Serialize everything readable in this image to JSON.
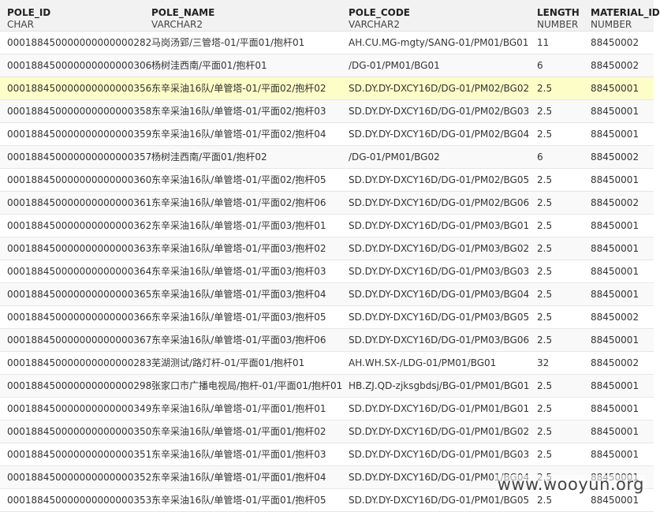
{
  "columns": [
    {
      "name": "POLE_ID",
      "type": "CHAR"
    },
    {
      "name": "POLE_NAME",
      "type": "VARCHAR2"
    },
    {
      "name": "POLE_CODE",
      "type": "VARCHAR2"
    },
    {
      "name": "LENGTH",
      "type": "NUMBER"
    },
    {
      "name": "MATERIAL_ID",
      "type": "NUMBER"
    }
  ],
  "highlighted_row": 2,
  "rows": [
    [
      "000188450000000000000282",
      "马岗汤郢/三管塔-01/平面01/抱杆01",
      "AH.CU.MG-mgty/SANG-01/PM01/BG01",
      "11",
      "88450002"
    ],
    [
      "000188450000000000000306",
      "杨树洼西南/平面01/抱杆01",
      "/DG-01/PM01/BG01",
      "6",
      "88450002"
    ],
    [
      "000188450000000000000356",
      "东辛采油16队/单管塔-01/平面02/抱杆02",
      "SD.DY.DY-DXCY16D/DG-01/PM02/BG02",
      "2.5",
      "88450001"
    ],
    [
      "000188450000000000000358",
      "东辛采油16队/单管塔-01/平面02/抱杆03",
      "SD.DY.DY-DXCY16D/DG-01/PM02/BG03",
      "2.5",
      "88450001"
    ],
    [
      "000188450000000000000359",
      "东辛采油16队/单管塔-01/平面02/抱杆04",
      "SD.DY.DY-DXCY16D/DG-01/PM02/BG04",
      "2.5",
      "88450001"
    ],
    [
      "000188450000000000000357",
      "杨树洼西南/平面01/抱杆02",
      "/DG-01/PM01/BG02",
      "6",
      "88450002"
    ],
    [
      "000188450000000000000360",
      "东辛采油16队/单管塔-01/平面02/抱杆05",
      "SD.DY.DY-DXCY16D/DG-01/PM02/BG05",
      "2.5",
      "88450001"
    ],
    [
      "000188450000000000000361",
      "东辛采油16队/单管塔-01/平面02/抱杆06",
      "SD.DY.DY-DXCY16D/DG-01/PM02/BG06",
      "2.5",
      "88450002"
    ],
    [
      "000188450000000000000362",
      "东辛采油16队/单管塔-01/平面03/抱杆01",
      "SD.DY.DY-DXCY16D/DG-01/PM03/BG01",
      "2.5",
      "88450001"
    ],
    [
      "000188450000000000000363",
      "东辛采油16队/单管塔-01/平面03/抱杆02",
      "SD.DY.DY-DXCY16D/DG-01/PM03/BG02",
      "2.5",
      "88450001"
    ],
    [
      "000188450000000000000364",
      "东辛采油16队/单管塔-01/平面03/抱杆03",
      "SD.DY.DY-DXCY16D/DG-01/PM03/BG03",
      "2.5",
      "88450001"
    ],
    [
      "000188450000000000000365",
      "东辛采油16队/单管塔-01/平面03/抱杆04",
      "SD.DY.DY-DXCY16D/DG-01/PM03/BG04",
      "2.5",
      "88450001"
    ],
    [
      "000188450000000000000366",
      "东辛采油16队/单管塔-01/平面03/抱杆05",
      "SD.DY.DY-DXCY16D/DG-01/PM03/BG05",
      "2.5",
      "88450002"
    ],
    [
      "000188450000000000000367",
      "东辛采油16队/单管塔-01/平面03/抱杆06",
      "SD.DY.DY-DXCY16D/DG-01/PM03/BG06",
      "2.5",
      "88450001"
    ],
    [
      "000188450000000000000283",
      "芜湖测试/路灯杆-01/平面01/抱杆01",
      "AH.WH.SX-/LDG-01/PM01/BG01",
      "32",
      "88450002"
    ],
    [
      "000188450000000000000298",
      "张家口市广播电视局/抱杆-01/平面01/抱杆01",
      "HB.ZJ.QD-zjksgbdsj/BG-01/PM01/BG01",
      "2.5",
      "88450001"
    ],
    [
      "000188450000000000000349",
      "东辛采油16队/单管塔-01/平面01/抱杆01",
      "SD.DY.DY-DXCY16D/DG-01/PM01/BG01",
      "2.5",
      "88450001"
    ],
    [
      "000188450000000000000350",
      "东辛采油16队/单管塔-01/平面01/抱杆02",
      "SD.DY.DY-DXCY16D/DG-01/PM01/BG02",
      "2.5",
      "88450001"
    ],
    [
      "000188450000000000000351",
      "东辛采油16队/单管塔-01/平面01/抱杆03",
      "SD.DY.DY-DXCY16D/DG-01/PM01/BG03",
      "2.5",
      "88450001"
    ],
    [
      "000188450000000000000352",
      "东辛采油16队/单管塔-01/平面01/抱杆04",
      "SD.DY.DY-DXCY16D/DG-01/PM01/BG04",
      "2.5",
      "88450001"
    ],
    [
      "000188450000000000000353",
      "东辛采油16队/单管塔-01/平面01/抱杆05",
      "SD.DY.DY-DXCY16D/DG-01/PM01/BG05",
      "2.5",
      "88450001"
    ]
  ],
  "watermark": "www.wooyun.org",
  "colors": {
    "highlight": "#fdfdc8",
    "header_bg": "#f2f2f2",
    "row_alt_bg": "#f9f9f9"
  }
}
